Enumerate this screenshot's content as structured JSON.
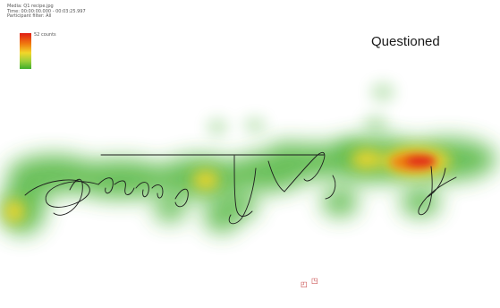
{
  "info": {
    "media": "Media: Q1 recipe.jpg",
    "time": "Time: 00:00:00.000 - 00:03:25.997",
    "filter": "Participant filter: All"
  },
  "legend": {
    "label": "52 counts",
    "colors": [
      "#e01e14",
      "#f07a10",
      "#f2d62a",
      "#9fcf3a",
      "#3fae2c"
    ]
  },
  "heading": "Questioned",
  "heatmap_colors": {
    "low": "#3fae2c",
    "mid": "#f2d62a",
    "high": "#e01e14"
  },
  "icons": [
    "cursor-icon",
    "cursor-icon"
  ]
}
